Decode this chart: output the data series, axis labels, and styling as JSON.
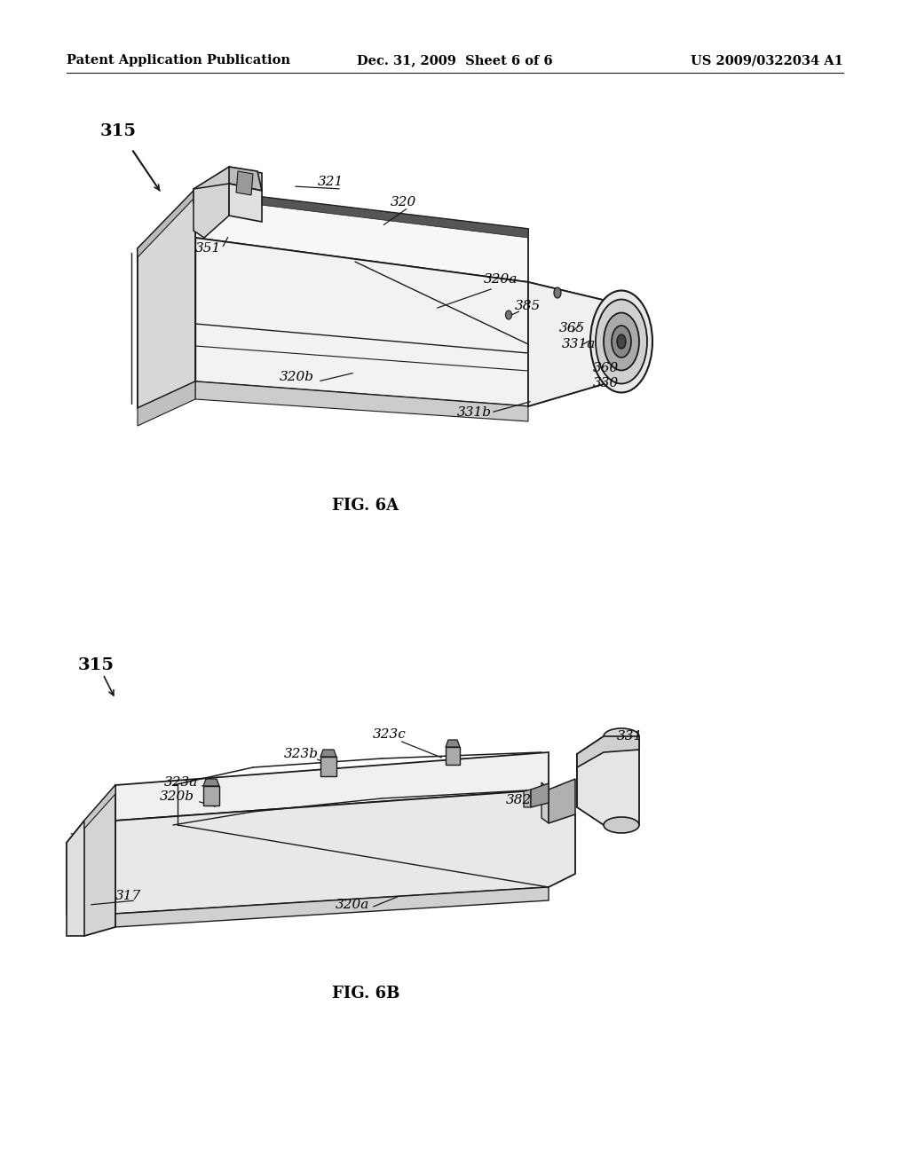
{
  "background_color": "#ffffff",
  "header_left": "Patent Application Publication",
  "header_center": "Dec. 31, 2009  Sheet 6 of 6",
  "header_right": "US 2009/0322034 A1",
  "header_fontsize": 10.5,
  "fig6a_caption": "FIG. 6A",
  "fig6b_caption": "FIG. 6B",
  "caption_fontsize": 13,
  "text_color": "#000000",
  "line_color": "#1a1a1a"
}
